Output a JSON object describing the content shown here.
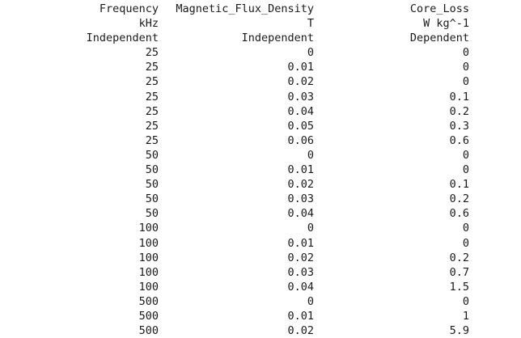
{
  "columns": [
    {
      "name": "Frequency",
      "unit": "kHz",
      "role": "Independent"
    },
    {
      "name": "Magnetic_Flux_Density",
      "unit": "T",
      "role": "Independent"
    },
    {
      "name": "Core_Loss",
      "unit": "W kg^-1",
      "role": "Dependent"
    }
  ],
  "rows": [
    [
      "25",
      "0",
      "0"
    ],
    [
      "25",
      "0.01",
      "0"
    ],
    [
      "25",
      "0.02",
      "0"
    ],
    [
      "25",
      "0.03",
      "0.1"
    ],
    [
      "25",
      "0.04",
      "0.2"
    ],
    [
      "25",
      "0.05",
      "0.3"
    ],
    [
      "25",
      "0.06",
      "0.6"
    ],
    [
      "50",
      "0",
      "0"
    ],
    [
      "50",
      "0.01",
      "0"
    ],
    [
      "50",
      "0.02",
      "0.1"
    ],
    [
      "50",
      "0.03",
      "0.2"
    ],
    [
      "50",
      "0.04",
      "0.6"
    ],
    [
      "100",
      "0",
      "0"
    ],
    [
      "100",
      "0.01",
      "0"
    ],
    [
      "100",
      "0.02",
      "0.2"
    ],
    [
      "100",
      "0.03",
      "0.7"
    ],
    [
      "100",
      "0.04",
      "1.5"
    ],
    [
      "500",
      "0",
      "0"
    ],
    [
      "500",
      "0.01",
      "1"
    ],
    [
      "500",
      "0.02",
      "5.9"
    ]
  ]
}
